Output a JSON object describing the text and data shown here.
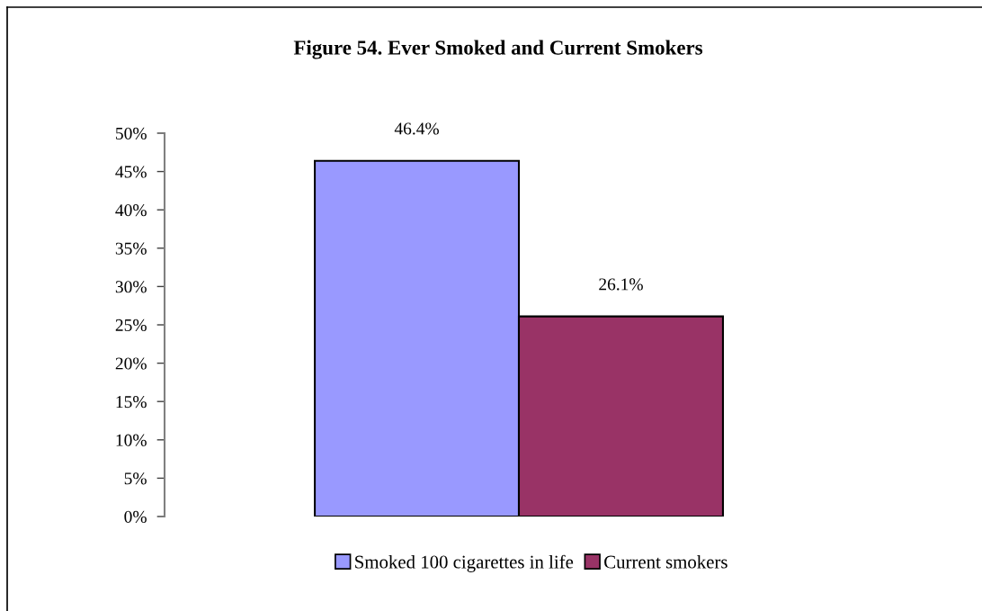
{
  "chart_data": {
    "type": "bar",
    "title": "Figure 54. Ever Smoked and Current Smokers",
    "categories": [
      null
    ],
    "series": [
      {
        "name": "Smoked 100 cigarettes in life",
        "color": "#9999ff",
        "values": [
          46.4
        ],
        "value_labels": [
          "46.4%"
        ]
      },
      {
        "name": "Current smokers",
        "color": "#993366",
        "values": [
          26.1
        ],
        "value_labels": [
          "26.1%"
        ]
      }
    ],
    "ylim": [
      0,
      50
    ],
    "yticks": [
      {
        "value": 0,
        "label": "0%"
      },
      {
        "value": 5,
        "label": "5%"
      },
      {
        "value": 10,
        "label": "10%"
      },
      {
        "value": 15,
        "label": "15%"
      },
      {
        "value": 20,
        "label": "20%"
      },
      {
        "value": 25,
        "label": "25%"
      },
      {
        "value": 30,
        "label": "30%"
      },
      {
        "value": 35,
        "label": "35%"
      },
      {
        "value": 40,
        "label": "40%"
      },
      {
        "value": 45,
        "label": "45%"
      },
      {
        "value": 50,
        "label": "50%"
      }
    ],
    "grid": false,
    "legend": "bottom"
  }
}
